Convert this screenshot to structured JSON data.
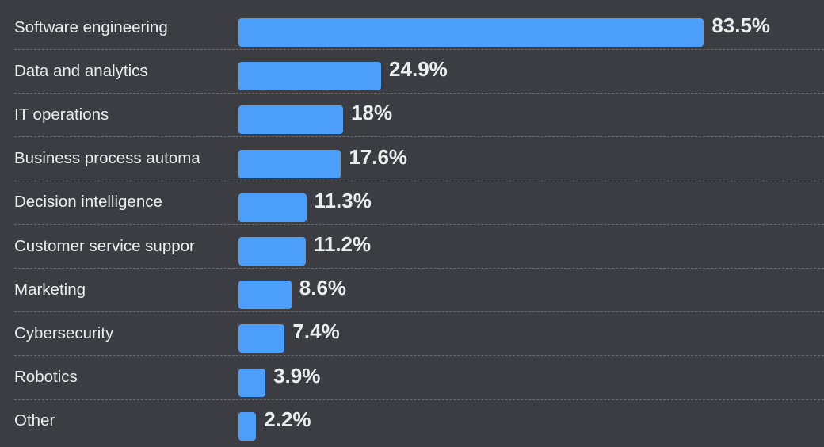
{
  "chart_data": {
    "type": "bar",
    "orientation": "horizontal",
    "categories": [
      "Software engineering",
      "Data and analytics",
      "IT operations",
      "Business process automa",
      "Decision intelligence",
      "Customer service suppor",
      "Marketing",
      "Cybersecurity",
      "Robotics",
      "Other"
    ],
    "values": [
      83.5,
      24.9,
      18,
      17.6,
      11.3,
      11.2,
      8.6,
      7.4,
      3.9,
      2.2
    ],
    "value_labels": [
      "83.5%",
      "24.9%",
      "18%",
      "17.6%",
      "11.3%",
      "11.2%",
      "8.6%",
      "7.4%",
      "3.9%",
      "2.2%"
    ],
    "unit": "%",
    "grid": false,
    "colors": {
      "bar": "#4b9ffa",
      "background": "#3b3d42",
      "text": "#ececec"
    }
  }
}
